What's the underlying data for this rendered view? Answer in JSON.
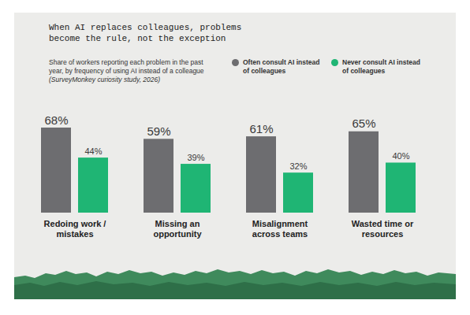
{
  "chart_data": {
    "type": "bar",
    "title": "When AI replaces colleagues, problems become the rule, not the exception",
    "subtitle": "Share of workers reporting each problem in the past year, by frequency of using AI instead of a colleague",
    "source": "(SurveyMonkey curiosity study, 2026)",
    "categories": [
      "Redoing work / mistakes",
      "Missing an opportunity",
      "Misalignment across teams",
      "Wasted time or resources"
    ],
    "series": [
      {
        "name": "Often consult AI instead of colleagues",
        "color": "#6d6d70",
        "values": [
          68,
          59,
          61,
          65
        ],
        "value_labels": [
          "68%",
          "59%",
          "61%",
          "65%"
        ]
      },
      {
        "name": "Never consult AI instead of colleagues",
        "color": "#1fb574",
        "values": [
          44,
          39,
          32,
          40
        ],
        "value_labels": [
          "44%",
          "39%",
          "32%",
          "40%"
        ]
      }
    ],
    "data_labels": true,
    "legend": "top-right",
    "tick_labels": false
  }
}
